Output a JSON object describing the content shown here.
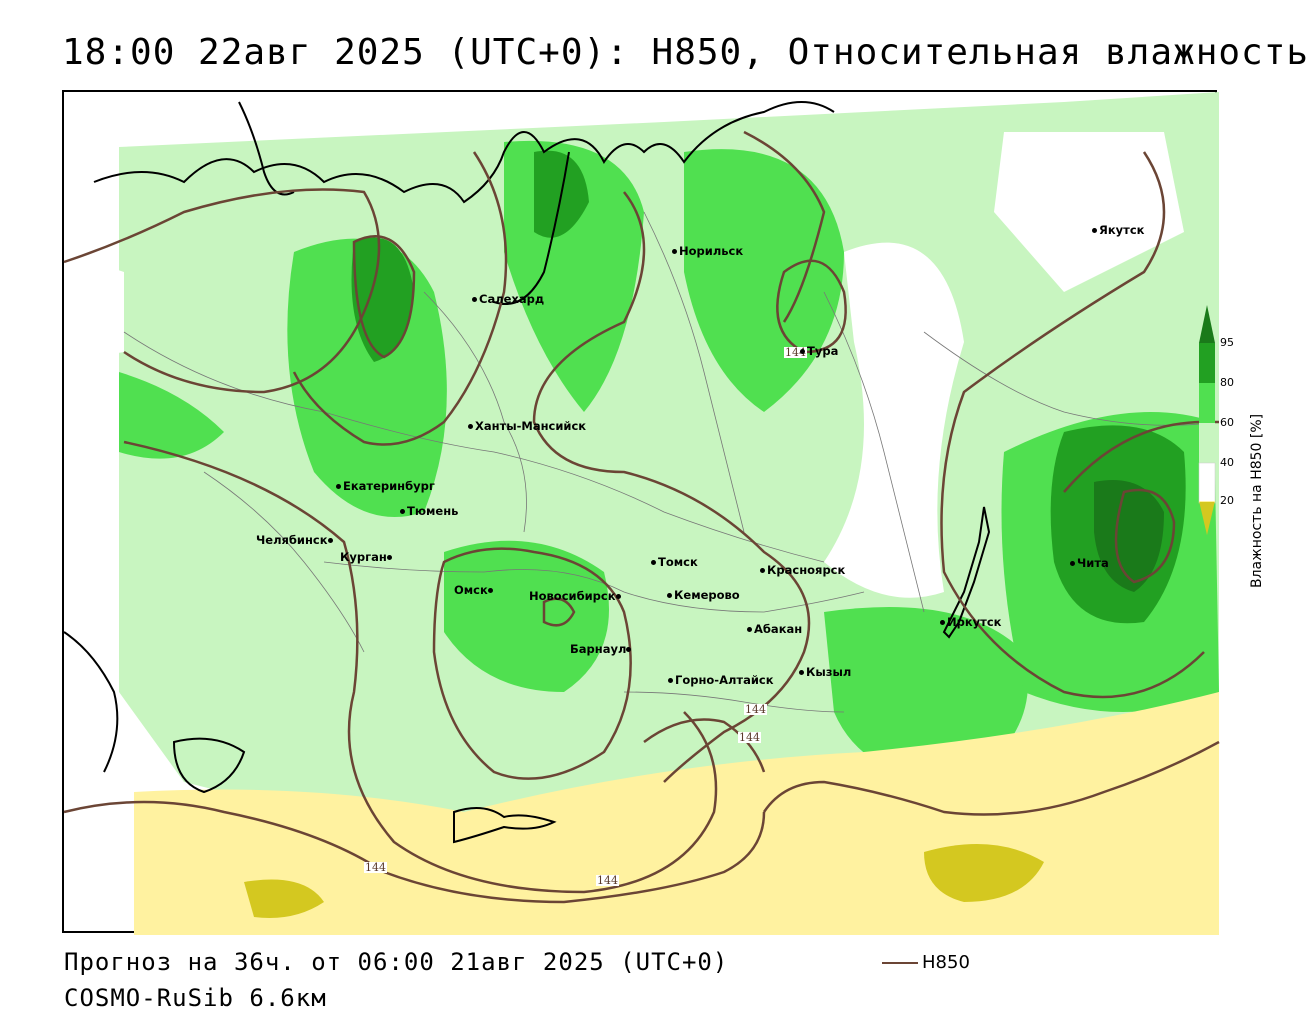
{
  "title": "18:00 22авг 2025 (UTC+0): H850, Относительная влажность",
  "footer": {
    "forecast": "Прогноз на 36ч. от 06:00 21авг 2025 (UTC+0)",
    "model": "COSMO-RuSib 6.6км",
    "line_legend": "H850"
  },
  "legend": {
    "axis_title": "Влажность на H850 [%]",
    "ticks": [
      "95",
      "80",
      "60",
      "40",
      "20"
    ],
    "colors": {
      "95+": "#1a7a1a",
      "80-95": "#22a022",
      "60-80": "#50e050",
      "40-60": "#c8f5c0",
      "20-40": "#ffffff",
      "0-20": "#fff2a0",
      "below": "#d4c820"
    }
  },
  "contour_labels": [
    "144",
    "144",
    "144",
    "144",
    "144"
  ],
  "cities": [
    {
      "name": "Якутск"
    },
    {
      "name": "Норильск"
    },
    {
      "name": "Салехард"
    },
    {
      "name": "Тура"
    },
    {
      "name": "Ханты-Мансийск"
    },
    {
      "name": "Екатеринбург"
    },
    {
      "name": "Тюмень"
    },
    {
      "name": "Челябинск"
    },
    {
      "name": "Курган"
    },
    {
      "name": "Омск"
    },
    {
      "name": "Новосибирск"
    },
    {
      "name": "Томск"
    },
    {
      "name": "Кемерово"
    },
    {
      "name": "Красноярск"
    },
    {
      "name": "Абакан"
    },
    {
      "name": "Барнаул"
    },
    {
      "name": "Горно-Алтайск"
    },
    {
      "name": "Кызыл"
    },
    {
      "name": "Иркутск"
    },
    {
      "name": "Чита"
    }
  ]
}
